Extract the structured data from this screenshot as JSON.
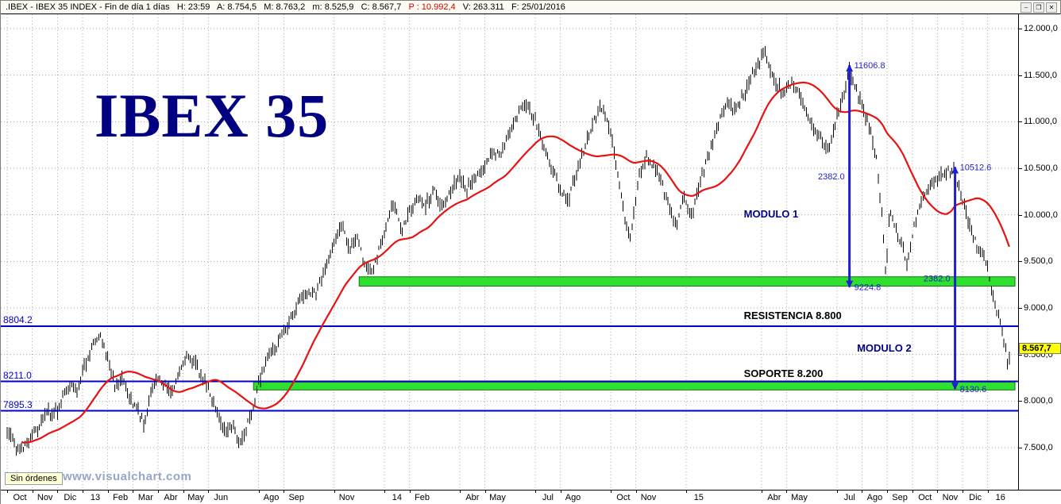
{
  "titlebar": {
    "title_left": ".IBEX - IBEX 35 INDEX - Fin de día 1 días   H: 23:59   A: 8.754,5   M: 8.763,2   m: 8.525,9   C: 8.567,7   ",
    "title_profit": "P : 10.992,4",
    "title_right": "   V: 263.311   F: 25/01/2016",
    "profit_color": "#d40000",
    "controls": {
      "minimize": "–",
      "restore": "❐",
      "close": "✕"
    }
  },
  "watermark": {
    "text": "IBEX 35",
    "color": "#000080"
  },
  "footer": {
    "orders_label": "Sin órdenes",
    "site": "www.visualchart.com"
  },
  "price_badge": {
    "label": "8.567,7",
    "value": 8567.7,
    "bg": "#ffff00"
  },
  "chart_data": {
    "type": "bar",
    "title": "IBEX 35 INDEX - Fin de día (daily bars)",
    "xlabel": "",
    "ylabel": "",
    "ylim": [
      7050,
      12150
    ],
    "x_span": [
      "Oct 2012",
      "Ene 2016"
    ],
    "grid": true,
    "legend": "none",
    "colors": {
      "grid": "#ababab",
      "bars": "#000000",
      "axis": "#000000"
    },
    "moving_average": {
      "color": "#e81212",
      "window_bars": 38
    },
    "y_ticks": [
      {
        "label": "12.000,0",
        "value": 12000
      },
      {
        "label": "11.500,0",
        "value": 11500
      },
      {
        "label": "11.000,0",
        "value": 11000
      },
      {
        "label": "10.500,0",
        "value": 10500
      },
      {
        "label": "10.000,0",
        "value": 10000
      },
      {
        "label": "9.500,0",
        "value": 9500
      },
      {
        "label": "9.000,0",
        "value": 9000
      },
      {
        "label": "8.500,0",
        "value": 8500
      },
      {
        "label": "8.000,0",
        "value": 8000
      },
      {
        "label": "7.500,0",
        "value": 7500
      }
    ],
    "x_ticks": [
      {
        "label": "Oct",
        "month": 0
      },
      {
        "label": "Nov",
        "month": 1
      },
      {
        "label": "Dic",
        "month": 2
      },
      {
        "label": "13",
        "month": 3
      },
      {
        "label": "Feb",
        "month": 4
      },
      {
        "label": "Mar",
        "month": 5
      },
      {
        "label": "Abr",
        "month": 6
      },
      {
        "label": "May",
        "month": 7
      },
      {
        "label": "Jun",
        "month": 8
      },
      {
        "label": "Ago",
        "month": 10
      },
      {
        "label": "Sep",
        "month": 11
      },
      {
        "label": "Nov",
        "month": 13
      },
      {
        "label": "14",
        "month": 15
      },
      {
        "label": "Feb",
        "month": 16
      },
      {
        "label": "Abr",
        "month": 18
      },
      {
        "label": "May",
        "month": 19
      },
      {
        "label": "Jul",
        "month": 21
      },
      {
        "label": "Ago",
        "month": 22
      },
      {
        "label": "Oct",
        "month": 24
      },
      {
        "label": "Nov",
        "month": 25
      },
      {
        "label": "15",
        "month": 27
      },
      {
        "label": "Abr",
        "month": 30
      },
      {
        "label": "May",
        "month": 31
      },
      {
        "label": "Jul",
        "month": 33
      },
      {
        "label": "Ago",
        "month": 34
      },
      {
        "label": "Sep",
        "month": 35
      },
      {
        "label": "Oct",
        "month": 36
      },
      {
        "label": "Nov",
        "month": 37
      },
      {
        "label": "Dic",
        "month": 38
      },
      {
        "label": "16",
        "month": 39
      }
    ],
    "hlines": [
      {
        "label": "8804.2",
        "value": 8804.2,
        "color": "#0000cd"
      },
      {
        "label": "8211.0",
        "value": 8211.0,
        "color": "#0000cd"
      },
      {
        "label": "7895.3",
        "value": 7895.3,
        "color": "#0000cd"
      }
    ],
    "bands": [
      {
        "name": "resistance-band-9224",
        "from": 9235,
        "to": 9335,
        "start_month": 14.0,
        "fill": "#2fe02f",
        "stroke": "#0a7a0a"
      },
      {
        "name": "support-band-8130",
        "from": 8120,
        "to": 8205,
        "start_month": 9.8,
        "fill": "#2fe02f",
        "stroke": "#0a7a0a"
      }
    ],
    "measures": [
      {
        "month": 33.5,
        "top": 11606.8,
        "bottom": 9224.8,
        "top_label": "11606.8",
        "bottom_label": "9224.8",
        "height_label": "2382.0",
        "color": "#1e1ed2"
      },
      {
        "month": 37.7,
        "top": 10512.6,
        "bottom": 8130.6,
        "top_label": "10512.6",
        "bottom_label": "8130.6",
        "height_label": "2382.0",
        "color": "#1e1ed2"
      }
    ],
    "annotations": [
      {
        "text": "MODULO 1",
        "month": 29.3,
        "price": 10010,
        "color": "#00008b",
        "size": 13
      },
      {
        "text": "MODULO 2",
        "month": 33.8,
        "price": 8570,
        "color": "#00008b",
        "size": 13
      },
      {
        "text": "RESISTENCIA 8.800",
        "month": 29.3,
        "price": 8920,
        "color": "#000000",
        "size": 13
      },
      {
        "text": "SOPORTE 8.200",
        "month": 29.3,
        "price": 8300,
        "color": "#000000",
        "size": 13
      }
    ],
    "close_series": [
      [
        0,
        7680
      ],
      [
        0.25,
        7560
      ],
      [
        0.5,
        7470
      ],
      [
        0.75,
        7560
      ],
      [
        1,
        7650
      ],
      [
        1.3,
        7760
      ],
      [
        1.6,
        7900
      ],
      [
        1.9,
        7860
      ],
      [
        2.2,
        8020
      ],
      [
        2.5,
        8180
      ],
      [
        2.8,
        8120
      ],
      [
        3.1,
        8380
      ],
      [
        3.4,
        8620
      ],
      [
        3.7,
        8690
      ],
      [
        4,
        8480
      ],
      [
        4.3,
        8180
      ],
      [
        4.6,
        8230
      ],
      [
        4.9,
        8010
      ],
      [
        5.2,
        7900
      ],
      [
        5.45,
        7750
      ],
      [
        5.7,
        8080
      ],
      [
        6,
        8280
      ],
      [
        6.3,
        8150
      ],
      [
        6.6,
        8100
      ],
      [
        6.9,
        8330
      ],
      [
        7.2,
        8490
      ],
      [
        7.5,
        8400
      ],
      [
        7.8,
        8230
      ],
      [
        8.1,
        8070
      ],
      [
        8.4,
        7830
      ],
      [
        8.7,
        7640
      ],
      [
        9,
        7730
      ],
      [
        9.2,
        7560
      ],
      [
        9.5,
        7700
      ],
      [
        9.8,
        7960
      ],
      [
        10.1,
        8290
      ],
      [
        10.4,
        8490
      ],
      [
        10.7,
        8600
      ],
      [
        11,
        8740
      ],
      [
        11.3,
        8890
      ],
      [
        11.6,
        9080
      ],
      [
        12,
        9190
      ],
      [
        12.3,
        9130
      ],
      [
        12.6,
        9390
      ],
      [
        13,
        9690
      ],
      [
        13.3,
        9930
      ],
      [
        13.6,
        9630
      ],
      [
        13.9,
        9760
      ],
      [
        14.2,
        9490
      ],
      [
        14.5,
        9390
      ],
      [
        14.8,
        9630
      ],
      [
        15.1,
        9930
      ],
      [
        15.4,
        10130
      ],
      [
        15.7,
        9830
      ],
      [
        16,
        10030
      ],
      [
        16.3,
        10190
      ],
      [
        16.6,
        10090
      ],
      [
        17,
        10290
      ],
      [
        17.3,
        10060
      ],
      [
        17.6,
        10230
      ],
      [
        18,
        10430
      ],
      [
        18.3,
        10270
      ],
      [
        18.6,
        10380
      ],
      [
        19,
        10530
      ],
      [
        19.3,
        10690
      ],
      [
        19.6,
        10630
      ],
      [
        20,
        10900
      ],
      [
        20.3,
        11090
      ],
      [
        20.6,
        11190
      ],
      [
        21,
        11030
      ],
      [
        21.3,
        10790
      ],
      [
        21.6,
        10560
      ],
      [
        22,
        10290
      ],
      [
        22.3,
        10130
      ],
      [
        22.6,
        10430
      ],
      [
        23,
        10750
      ],
      [
        23.3,
        10990
      ],
      [
        23.6,
        11170
      ],
      [
        24,
        10900
      ],
      [
        24.3,
        10430
      ],
      [
        24.6,
        9890
      ],
      [
        24.8,
        9760
      ],
      [
        25.1,
        10360
      ],
      [
        25.4,
        10630
      ],
      [
        25.7,
        10530
      ],
      [
        26,
        10390
      ],
      [
        26.3,
        10090
      ],
      [
        26.6,
        9890
      ],
      [
        26.9,
        10190
      ],
      [
        27.2,
        9960
      ],
      [
        27.5,
        10290
      ],
      [
        27.8,
        10560
      ],
      [
        28.1,
        10830
      ],
      [
        28.4,
        11090
      ],
      [
        28.7,
        11190
      ],
      [
        29,
        11130
      ],
      [
        29.3,
        11290
      ],
      [
        29.6,
        11490
      ],
      [
        29.9,
        11630
      ],
      [
        30.1,
        11780
      ],
      [
        30.3,
        11590
      ],
      [
        30.6,
        11400
      ],
      [
        30.9,
        11300
      ],
      [
        31.2,
        11430
      ],
      [
        31.5,
        11290
      ],
      [
        31.8,
        11090
      ],
      [
        32.1,
        10930
      ],
      [
        32.4,
        10790
      ],
      [
        32.7,
        10700
      ],
      [
        33,
        11060
      ],
      [
        33.3,
        11330
      ],
      [
        33.5,
        11560
      ],
      [
        33.7,
        11390
      ],
      [
        34,
        11190
      ],
      [
        34.3,
        10930
      ],
      [
        34.6,
        10560
      ],
      [
        34.8,
        9960
      ],
      [
        34.95,
        9330
      ],
      [
        35.1,
        10060
      ],
      [
        35.3,
        9860
      ],
      [
        35.6,
        9660
      ],
      [
        35.8,
        9490
      ],
      [
        36,
        9790
      ],
      [
        36.3,
        10130
      ],
      [
        36.6,
        10290
      ],
      [
        37,
        10390
      ],
      [
        37.4,
        10470
      ],
      [
        37.7,
        10460
      ],
      [
        38,
        10130
      ],
      [
        38.3,
        9890
      ],
      [
        38.6,
        9630
      ],
      [
        38.9,
        9530
      ],
      [
        39.1,
        9280
      ],
      [
        39.3,
        9050
      ],
      [
        39.5,
        8820
      ],
      [
        39.65,
        8620
      ],
      [
        39.75,
        8450
      ],
      [
        39.82,
        8340
      ],
      [
        39.9,
        8568
      ]
    ]
  }
}
